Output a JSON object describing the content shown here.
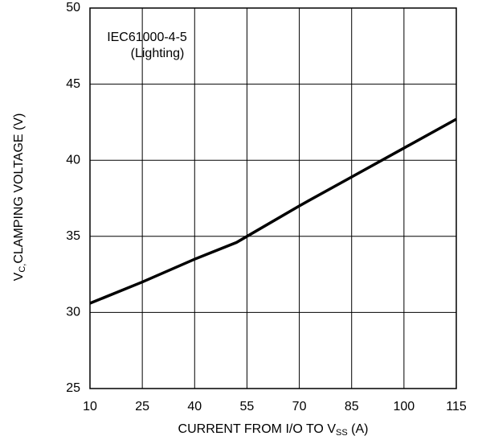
{
  "chart_data": {
    "type": "line",
    "annotation": [
      "IEC61000-4-5",
      "(Lighting)"
    ],
    "ylabel": {
      "main": "V",
      "sub": "C,",
      "rest": "CLAMPING VOLTAGE (V)"
    },
    "xlabel": {
      "main": "CURRENT FROM I/O TO V",
      "sub": "SS",
      "rest": " (A)"
    },
    "x": [
      10,
      25,
      40,
      52,
      55,
      70,
      85,
      100,
      115
    ],
    "series": [
      {
        "color": "#000000",
        "values": [
          30.6,
          32.0,
          33.5,
          34.6,
          35.0,
          37.0,
          38.9,
          40.8,
          42.7
        ]
      }
    ],
    "xlim": [
      10,
      115
    ],
    "xticks": [
      10,
      25,
      40,
      55,
      70,
      85,
      100,
      115
    ],
    "ylim": [
      25,
      50
    ],
    "yticks": [
      25,
      30,
      35,
      40,
      45,
      50
    ],
    "grid": true
  }
}
